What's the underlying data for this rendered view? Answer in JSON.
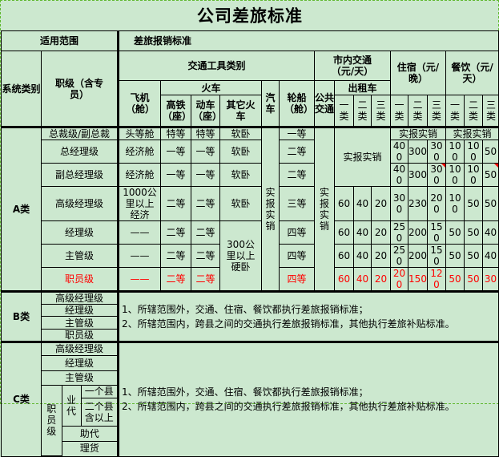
{
  "title": "公司差旅标准",
  "header": {
    "scope": "适用范围",
    "reimbursement": "差旅报销标准",
    "system_type": "系统类别",
    "level": "职级（含专员）",
    "transport": "交通工具类别",
    "city_transport": "市内交通（元/天）",
    "hotel": "住宿（元/晚）",
    "meal": "餐饮（元/天）",
    "plane": "飞机（舱）",
    "train": "火车",
    "hsr": "高铁（座）",
    "emu": "动车（座）",
    "other_train": "其它火车",
    "bus": "汽车",
    "ship": "轮船（舱）",
    "public": "公共交通",
    "taxi": "出租车",
    "classes": [
      "一类",
      "二类",
      "三类"
    ]
  },
  "section_a": {
    "label": "A类",
    "bus": "实报实销",
    "public": "实报实销",
    "taxi_merged": "实报实销",
    "hotel_merged": "实报实销",
    "meal_merged": "实报实销",
    "other_train_merged": "300公里以上硬卧",
    "rows": [
      {
        "level": "总裁级/副总裁",
        "plane": "头等舱",
        "hsr": "特等",
        "emu": "特等",
        "other_train": "软卧",
        "ship": "一等"
      },
      {
        "level": "总经理级",
        "plane": "经济舱",
        "hsr": "一等",
        "emu": "一等",
        "other_train": "软卧",
        "ship": "二等",
        "hotel": [
          "400",
          "300",
          "300"
        ],
        "meal": [
          "100",
          "100",
          "50"
        ]
      },
      {
        "level": "副总经理级",
        "plane": "经济舱",
        "hsr": "一等",
        "emu": "一等",
        "other_train": "软卧",
        "ship": "二等",
        "hotel": [
          "400",
          "300",
          "300"
        ],
        "meal": [
          "100",
          "100",
          "50"
        ]
      },
      {
        "level": "高级经理级",
        "plane": "1000公里以上经济",
        "hsr": "二等",
        "emu": "二等",
        "other_train": "软卧",
        "ship": "三等",
        "taxi": [
          "60",
          "40",
          "20"
        ],
        "hotel": [
          "300",
          "230",
          "200"
        ],
        "meal": [
          "100",
          "50",
          "50"
        ]
      },
      {
        "level": "经理级",
        "plane": "——",
        "hsr": "二等",
        "emu": "二等",
        "ship": "四等",
        "taxi": [
          "60",
          "40",
          "20"
        ],
        "hotel": [
          "250",
          "200",
          "150"
        ],
        "meal": [
          "50",
          "50",
          "40"
        ]
      },
      {
        "level": "主管级",
        "plane": "——",
        "hsr": "二等",
        "emu": "二等",
        "ship": "四等",
        "taxi": [
          "60",
          "40",
          "20"
        ],
        "hotel": [
          "250",
          "200",
          "150"
        ],
        "meal": [
          "50",
          "50",
          "40"
        ]
      },
      {
        "level": "职员级",
        "plane": "——",
        "hsr": "二等",
        "emu": "二等",
        "ship": "四等",
        "taxi": [
          "60",
          "40",
          "20"
        ],
        "hotel": [
          "200",
          "150",
          "120"
        ],
        "meal": [
          "50",
          "50",
          "30"
        ]
      }
    ],
    "highlight_color": "#ff0000"
  },
  "section_b": {
    "label": "B类",
    "levels": [
      "高级经理级",
      "经理级",
      "主管级",
      "职员级"
    ],
    "notes": [
      "1、所辖范围外，交通、住宿、餐饮都执行差旅报销标准；",
      "2、所辖范围内，跨县之间的交通执行差旅报销标准，其他执行差旅补贴标准。"
    ]
  },
  "section_c": {
    "label": "C类",
    "levels": [
      "高级经理级",
      "经理级",
      "主管级"
    ],
    "staff": "职员级",
    "sales_rep": "业代",
    "one_county": "一个县",
    "two_counties": "二个县含以上",
    "assistant_rep": "助代",
    "merchandiser": "理货",
    "notes": [
      "1、所辖范围外，交通、住宿、餐饮都执行差旅报销标准；",
      "2、所辖范围内，跨县之间的交通执行差旅报销标准，其他执行差旅补贴标准。"
    ]
  },
  "colors": {
    "background": "#cce8cf",
    "border": "#000000",
    "outer_dashed": "#5fb82f"
  }
}
